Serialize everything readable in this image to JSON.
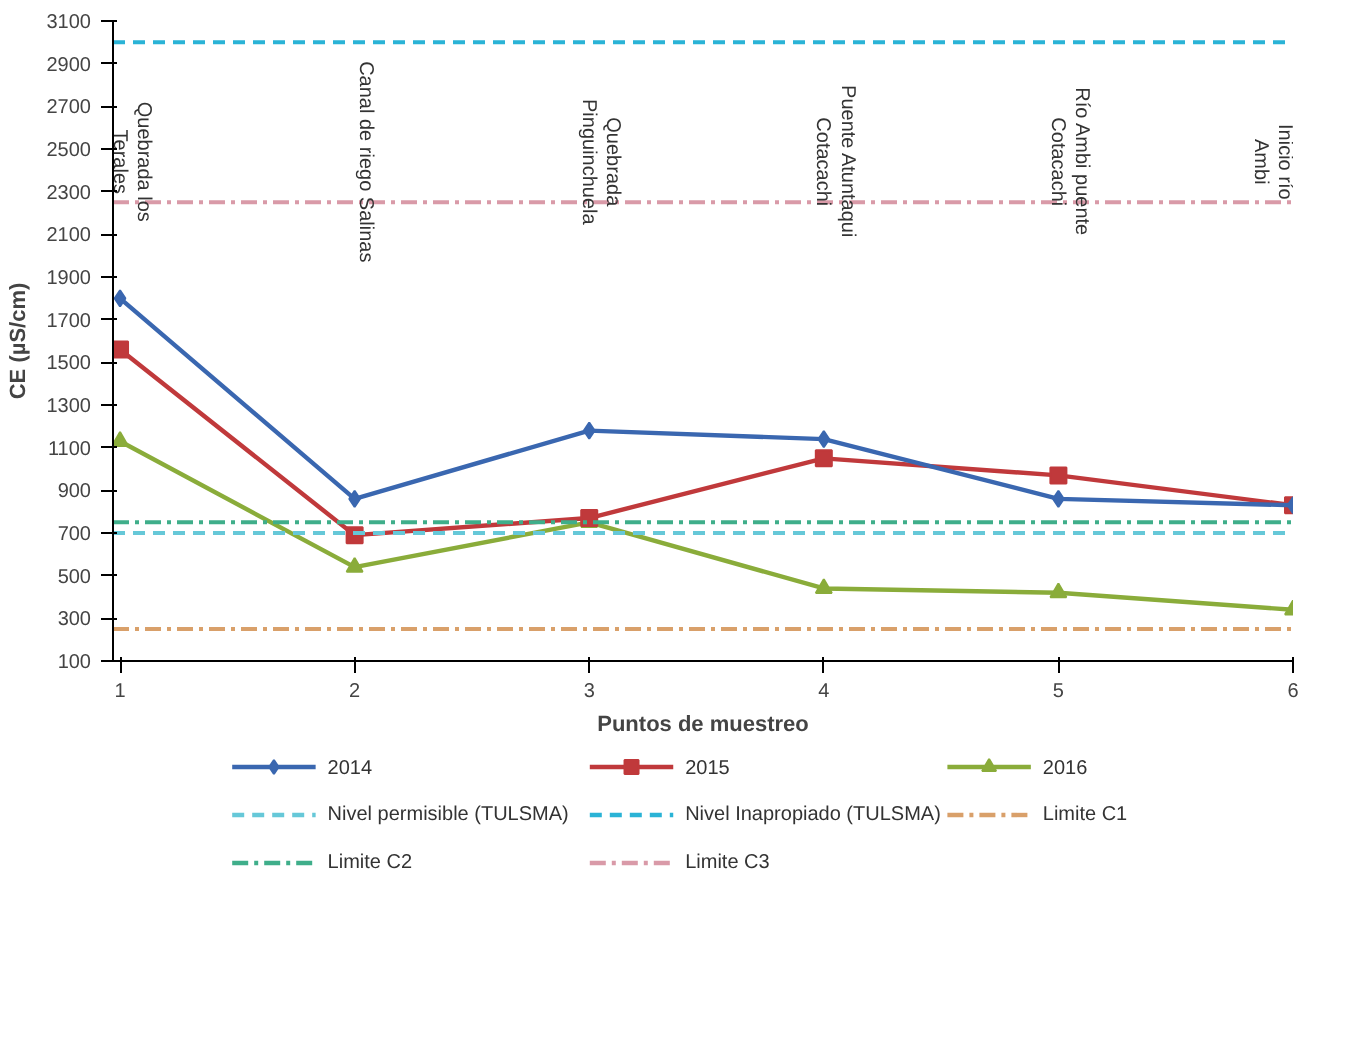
{
  "chart_data": {
    "type": "line",
    "xlabel": "Puntos de muestreo",
    "ylabel": "CE (µS/cm)",
    "x": [
      1,
      2,
      3,
      4,
      5,
      6
    ],
    "xlim": [
      0.97,
      6
    ],
    "xticks": [
      1,
      2,
      3,
      4,
      5,
      6
    ],
    "ylim": [
      100,
      3100
    ],
    "yticks": [
      100,
      300,
      500,
      700,
      900,
      1100,
      1300,
      1500,
      1700,
      1900,
      2100,
      2300,
      2500,
      2700,
      2900,
      3100
    ],
    "grid": false,
    "legend": "bottom",
    "line_style": "solid",
    "series": [
      {
        "name": "2014",
        "color": "#3a67b0",
        "marker": "diamond",
        "values": [
          1800,
          860,
          1180,
          1140,
          860,
          830
        ]
      },
      {
        "name": "2015",
        "color": "#c0393b",
        "marker": "square",
        "values": [
          1560,
          690,
          770,
          1050,
          970,
          830
        ]
      },
      {
        "name": "2016",
        "color": "#8aac3a",
        "marker": "triangle",
        "values": [
          1130,
          540,
          750,
          440,
          420,
          340
        ]
      }
    ],
    "ref_lines": [
      {
        "axis": "y",
        "value": 700,
        "label": "Nivel permisible (TULSMA)",
        "color": "#66c8d8",
        "line_style": "dashed"
      },
      {
        "axis": "y",
        "value": 3000,
        "label": "Nivel Inapropiado (TULSMA)",
        "color": "#2ab3d6",
        "line_style": "dashed"
      },
      {
        "axis": "y",
        "value": 250,
        "label": "Limite C1",
        "color": "#d9a06a",
        "line_style": "dashdot"
      },
      {
        "axis": "y",
        "value": 750,
        "label": "Limite C2",
        "color": "#3fae8a",
        "line_style": "dashdot"
      },
      {
        "axis": "y",
        "value": 2250,
        "label": "Limite C3",
        "color": "#d99aa8",
        "line_style": "dashdot"
      }
    ],
    "annotations": [
      "Quebrada los\nTerales",
      "Canal de riego Salinas",
      "Quebrada\nPinguinchuela",
      "Puente Atuntaqui\nCotacachi",
      "Río Ambi puente\nCotacachi",
      "Inicio río\nAmbi"
    ]
  }
}
